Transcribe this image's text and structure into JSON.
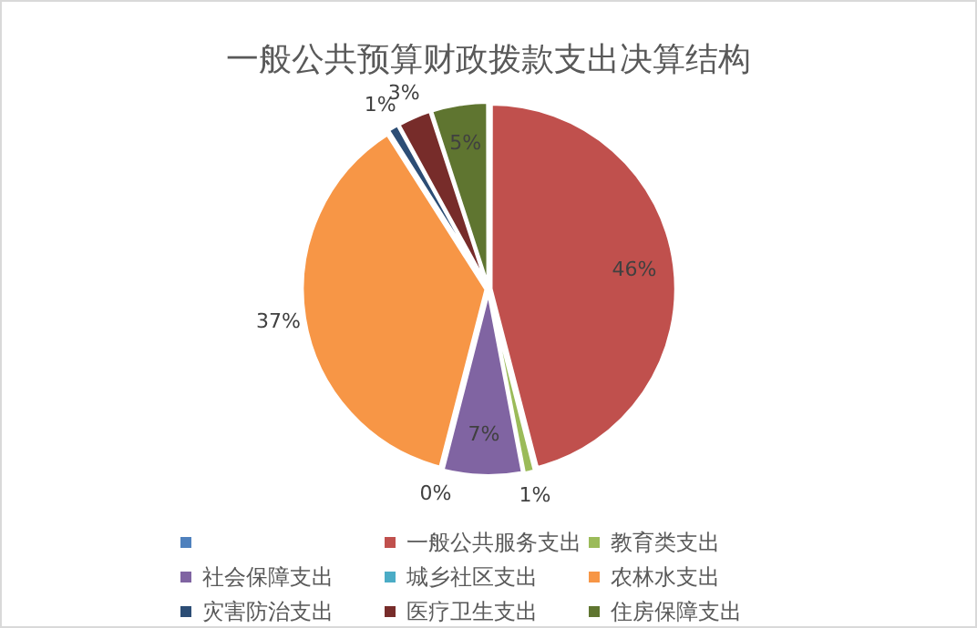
{
  "chart_data": {
    "type": "pie",
    "title": "一般公共预算财政拨款支出决算结构",
    "categories": [
      null,
      "一般公共服务支出",
      "教育类支出",
      "社会保障支出",
      "城乡社区支出",
      "农林水支出",
      "灾害防治支出",
      "医疗卫生支出",
      "住房保障支出"
    ],
    "values": [
      0,
      46,
      1,
      7,
      0,
      37,
      1,
      3,
      5
    ],
    "colors": [
      "#4f81bd",
      "#c0504d",
      "#9bbb59",
      "#8064a2",
      "#4bacc6",
      "#f79646",
      "#2c4d75",
      "#772c2a",
      "#5f7530"
    ],
    "value_labels": [
      null,
      "46%",
      "1%",
      "7%",
      "0%",
      "37%",
      "1%",
      "3%",
      "5%"
    ],
    "legend": "bottom"
  }
}
